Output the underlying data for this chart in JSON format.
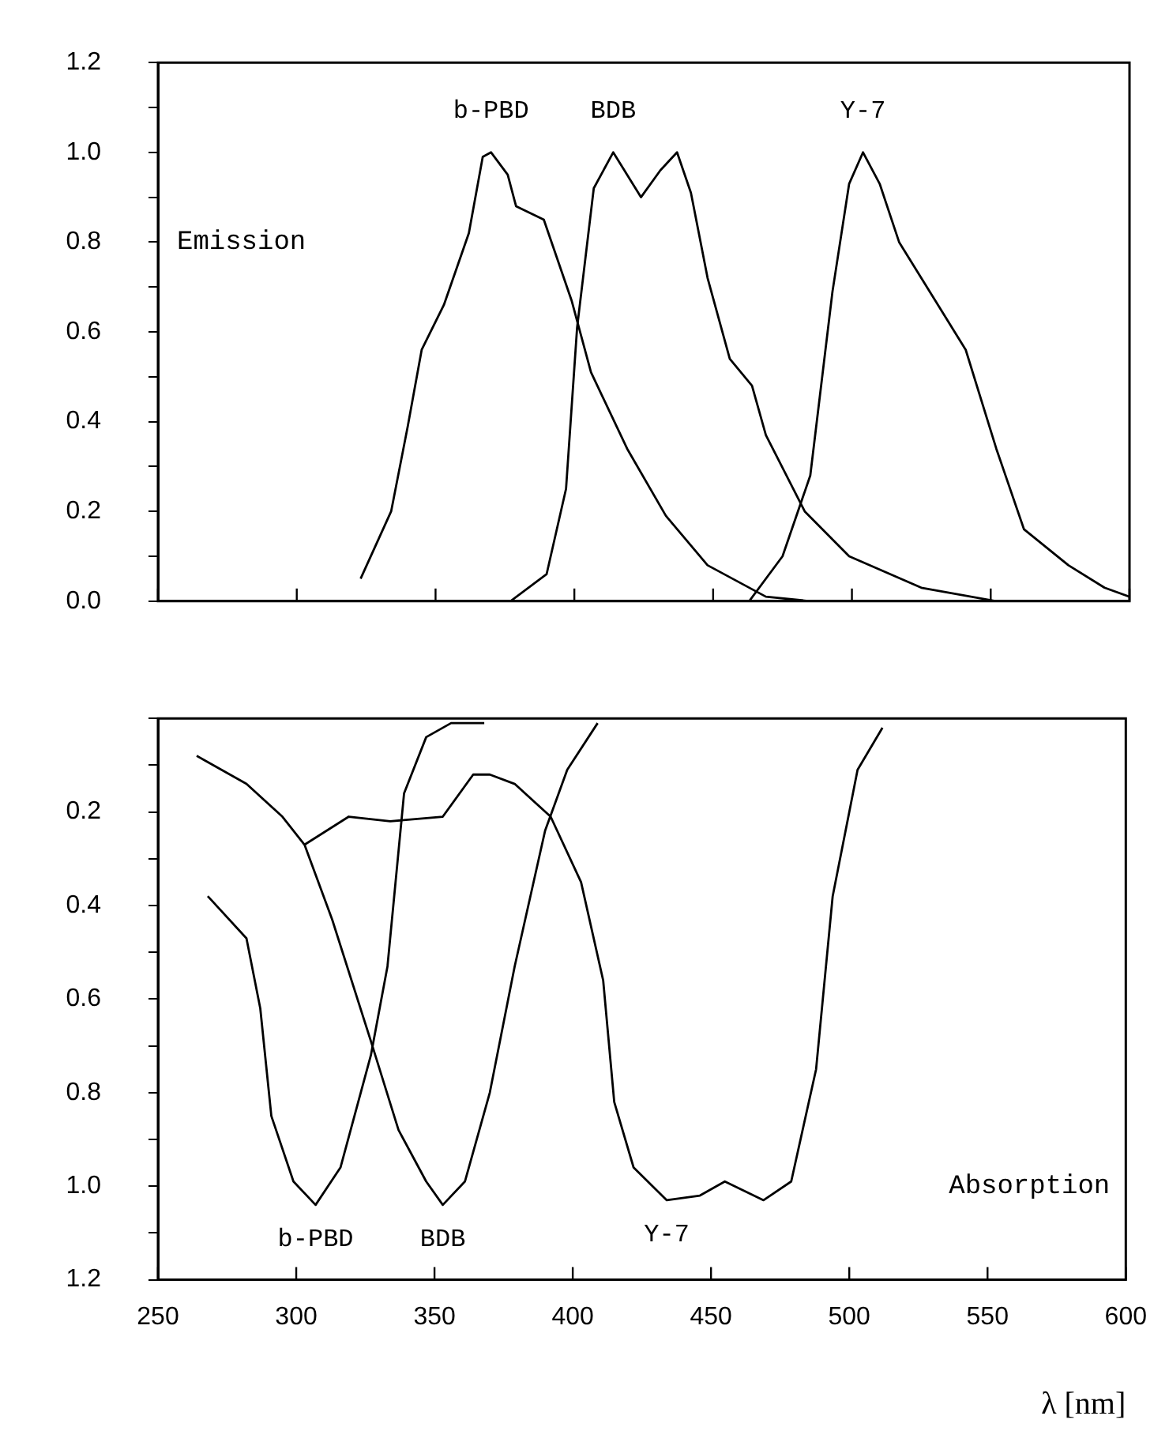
{
  "chart_data": [
    {
      "type": "line",
      "annotations": [
        "Emission"
      ],
      "xlim": [
        250,
        600
      ],
      "xticks": [
        {
          "value": 250,
          "label": null
        },
        {
          "value": 300,
          "label": null
        },
        {
          "value": 350,
          "label": null
        },
        {
          "value": 400,
          "label": null
        },
        {
          "value": 450,
          "label": null
        },
        {
          "value": 500,
          "label": null
        },
        {
          "value": 550,
          "label": null
        },
        {
          "value": 600,
          "label": null
        }
      ],
      "ylim": [
        0,
        1.2
      ],
      "yticks": [
        {
          "value": 0,
          "label": "0.0"
        },
        {
          "value": 0.1,
          "label": null
        },
        0.2,
        {
          "value": 0.3,
          "label": null
        },
        0.4,
        {
          "value": 0.5,
          "label": null
        },
        0.6,
        {
          "value": 0.7,
          "label": null
        },
        0.8,
        {
          "value": 0.9,
          "label": null
        },
        {
          "value": 1,
          "label": "1.0"
        },
        {
          "value": 1.1,
          "label": null
        },
        1.2
      ],
      "tick_labels": "y",
      "grid": false,
      "legend": false,
      "marker": "none",
      "line_style": "solid",
      "series": [
        {
          "name": "b-PBD",
          "color": "#000000",
          "x": [
            323,
            334,
            340,
            345,
            353,
            362,
            367,
            370,
            376,
            379,
            389,
            399,
            406,
            419,
            433,
            448,
            469,
            485
          ],
          "values": [
            0.05,
            0.2,
            0.39,
            0.56,
            0.66,
            0.82,
            0.99,
            1.0,
            0.95,
            0.88,
            0.85,
            0.67,
            0.51,
            0.34,
            0.19,
            0.08,
            0.01,
            0.0
          ]
        },
        {
          "name": "BDB",
          "color": "#000000",
          "x": [
            377,
            390,
            397,
            401,
            407,
            414,
            424,
            431,
            437,
            442,
            448,
            456,
            464,
            469,
            483,
            499,
            525,
            552
          ],
          "values": [
            0.0,
            0.06,
            0.25,
            0.61,
            0.92,
            1.0,
            0.9,
            0.96,
            1.0,
            0.91,
            0.72,
            0.54,
            0.48,
            0.37,
            0.2,
            0.1,
            0.03,
            0.0
          ]
        },
        {
          "name": "Y-7",
          "color": "#000000",
          "x": [
            463,
            475,
            485,
            493,
            499,
            504,
            510,
            517,
            530,
            541,
            552,
            562,
            578,
            591,
            600
          ],
          "values": [
            0.0,
            0.1,
            0.28,
            0.69,
            0.93,
            1.0,
            0.93,
            0.8,
            0.67,
            0.56,
            0.34,
            0.16,
            0.08,
            0.03,
            0.01
          ]
        }
      ]
    },
    {
      "type": "line",
      "annotations": [
        "Absorption"
      ],
      "xlabel": "λ [nm]",
      "xlim": [
        250,
        600
      ],
      "xticks": [
        250,
        300,
        350,
        400,
        450,
        500,
        550,
        600
      ],
      "ylim": [
        1.2,
        0
      ],
      "yticks": [
        {
          "value": 0,
          "label": null
        },
        {
          "value": 0.1,
          "label": null
        },
        0.2,
        {
          "value": 0.3,
          "label": null
        },
        0.4,
        {
          "value": 0.5,
          "label": null
        },
        0.6,
        {
          "value": 0.7,
          "label": null
        },
        0.8,
        {
          "value": 0.9,
          "label": null
        },
        {
          "value": 1,
          "label": "1.0"
        },
        {
          "value": 1.1,
          "label": null
        },
        1.2
      ],
      "grid": false,
      "legend": false,
      "marker": "none",
      "line_style": "solid",
      "series": [
        {
          "name": "b-PBD",
          "color": "#000000",
          "x": [
            268,
            282,
            287,
            291,
            299,
            307,
            316,
            327,
            333,
            339,
            347,
            356,
            368
          ],
          "values": [
            0.38,
            0.47,
            0.62,
            0.85,
            0.99,
            1.04,
            0.96,
            0.72,
            0.53,
            0.16,
            0.04,
            0.01,
            0.01
          ]
        },
        {
          "name": "BDB",
          "color": "#000000",
          "x": [
            264,
            282,
            295,
            303,
            313,
            327,
            337,
            347,
            353,
            361,
            370,
            379,
            390,
            398,
            409
          ],
          "values": [
            0.08,
            0.14,
            0.21,
            0.27,
            0.43,
            0.69,
            0.88,
            0.99,
            1.04,
            0.99,
            0.8,
            0.53,
            0.24,
            0.11,
            0.01
          ]
        },
        {
          "name": "Y-7",
          "color": "#000000",
          "x": [
            303,
            319,
            334,
            353,
            364,
            370,
            379,
            392,
            403,
            411,
            415,
            422,
            434,
            446,
            455,
            469,
            479,
            488,
            494,
            503,
            512
          ],
          "values": [
            0.27,
            0.21,
            0.22,
            0.21,
            0.12,
            0.12,
            0.14,
            0.21,
            0.35,
            0.56,
            0.82,
            0.96,
            1.03,
            1.02,
            0.99,
            1.03,
            0.99,
            0.75,
            0.38,
            0.11,
            0.02
          ]
        }
      ]
    }
  ]
}
